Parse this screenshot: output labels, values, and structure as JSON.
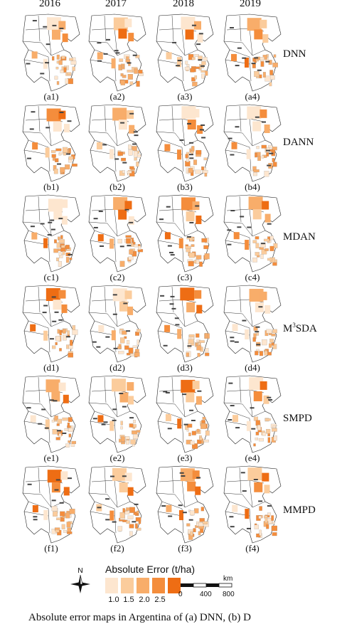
{
  "years": [
    "2016",
    "2017",
    "2018",
    "2019"
  ],
  "rows": [
    {
      "method": "DNN",
      "labels": [
        "(a1)",
        "(a2)",
        "(a3)",
        "(a4)"
      ]
    },
    {
      "method": "DANN",
      "labels": [
        "(b1)",
        "(b2)",
        "(b3)",
        "(b4)"
      ]
    },
    {
      "method": "MDAN",
      "labels": [
        "(c1)",
        "(c2)",
        "(c3)",
        "(c4)"
      ]
    },
    {
      "method_prefix": "M",
      "method_sup": "3",
      "method_suffix": "SDA",
      "labels": [
        "(d1)",
        "(d2)",
        "(d3)",
        "(d4)"
      ]
    },
    {
      "method": "SMPD",
      "labels": [
        "(e1)",
        "(e2)",
        "(e3)",
        "(e4)"
      ]
    },
    {
      "method": "MMPD",
      "labels": [
        "(f1)",
        "(f2)",
        "(f3)",
        "(f4)"
      ]
    }
  ],
  "legend": {
    "title": "Absolute Error (t/ha)",
    "ticks": [
      "1.0",
      "1.5",
      "2.0",
      "2.5"
    ],
    "colors": [
      "#fde6cf",
      "#fbcc9c",
      "#f8ad6a",
      "#f48d3c",
      "#ee6d14"
    ]
  },
  "compass": {
    "label": "N"
  },
  "scalebar": {
    "unit": "km",
    "ticks": [
      "0",
      "400",
      "800"
    ]
  },
  "caption": "Absolute error maps in Argentina of (a) DNN, (b) D"
}
